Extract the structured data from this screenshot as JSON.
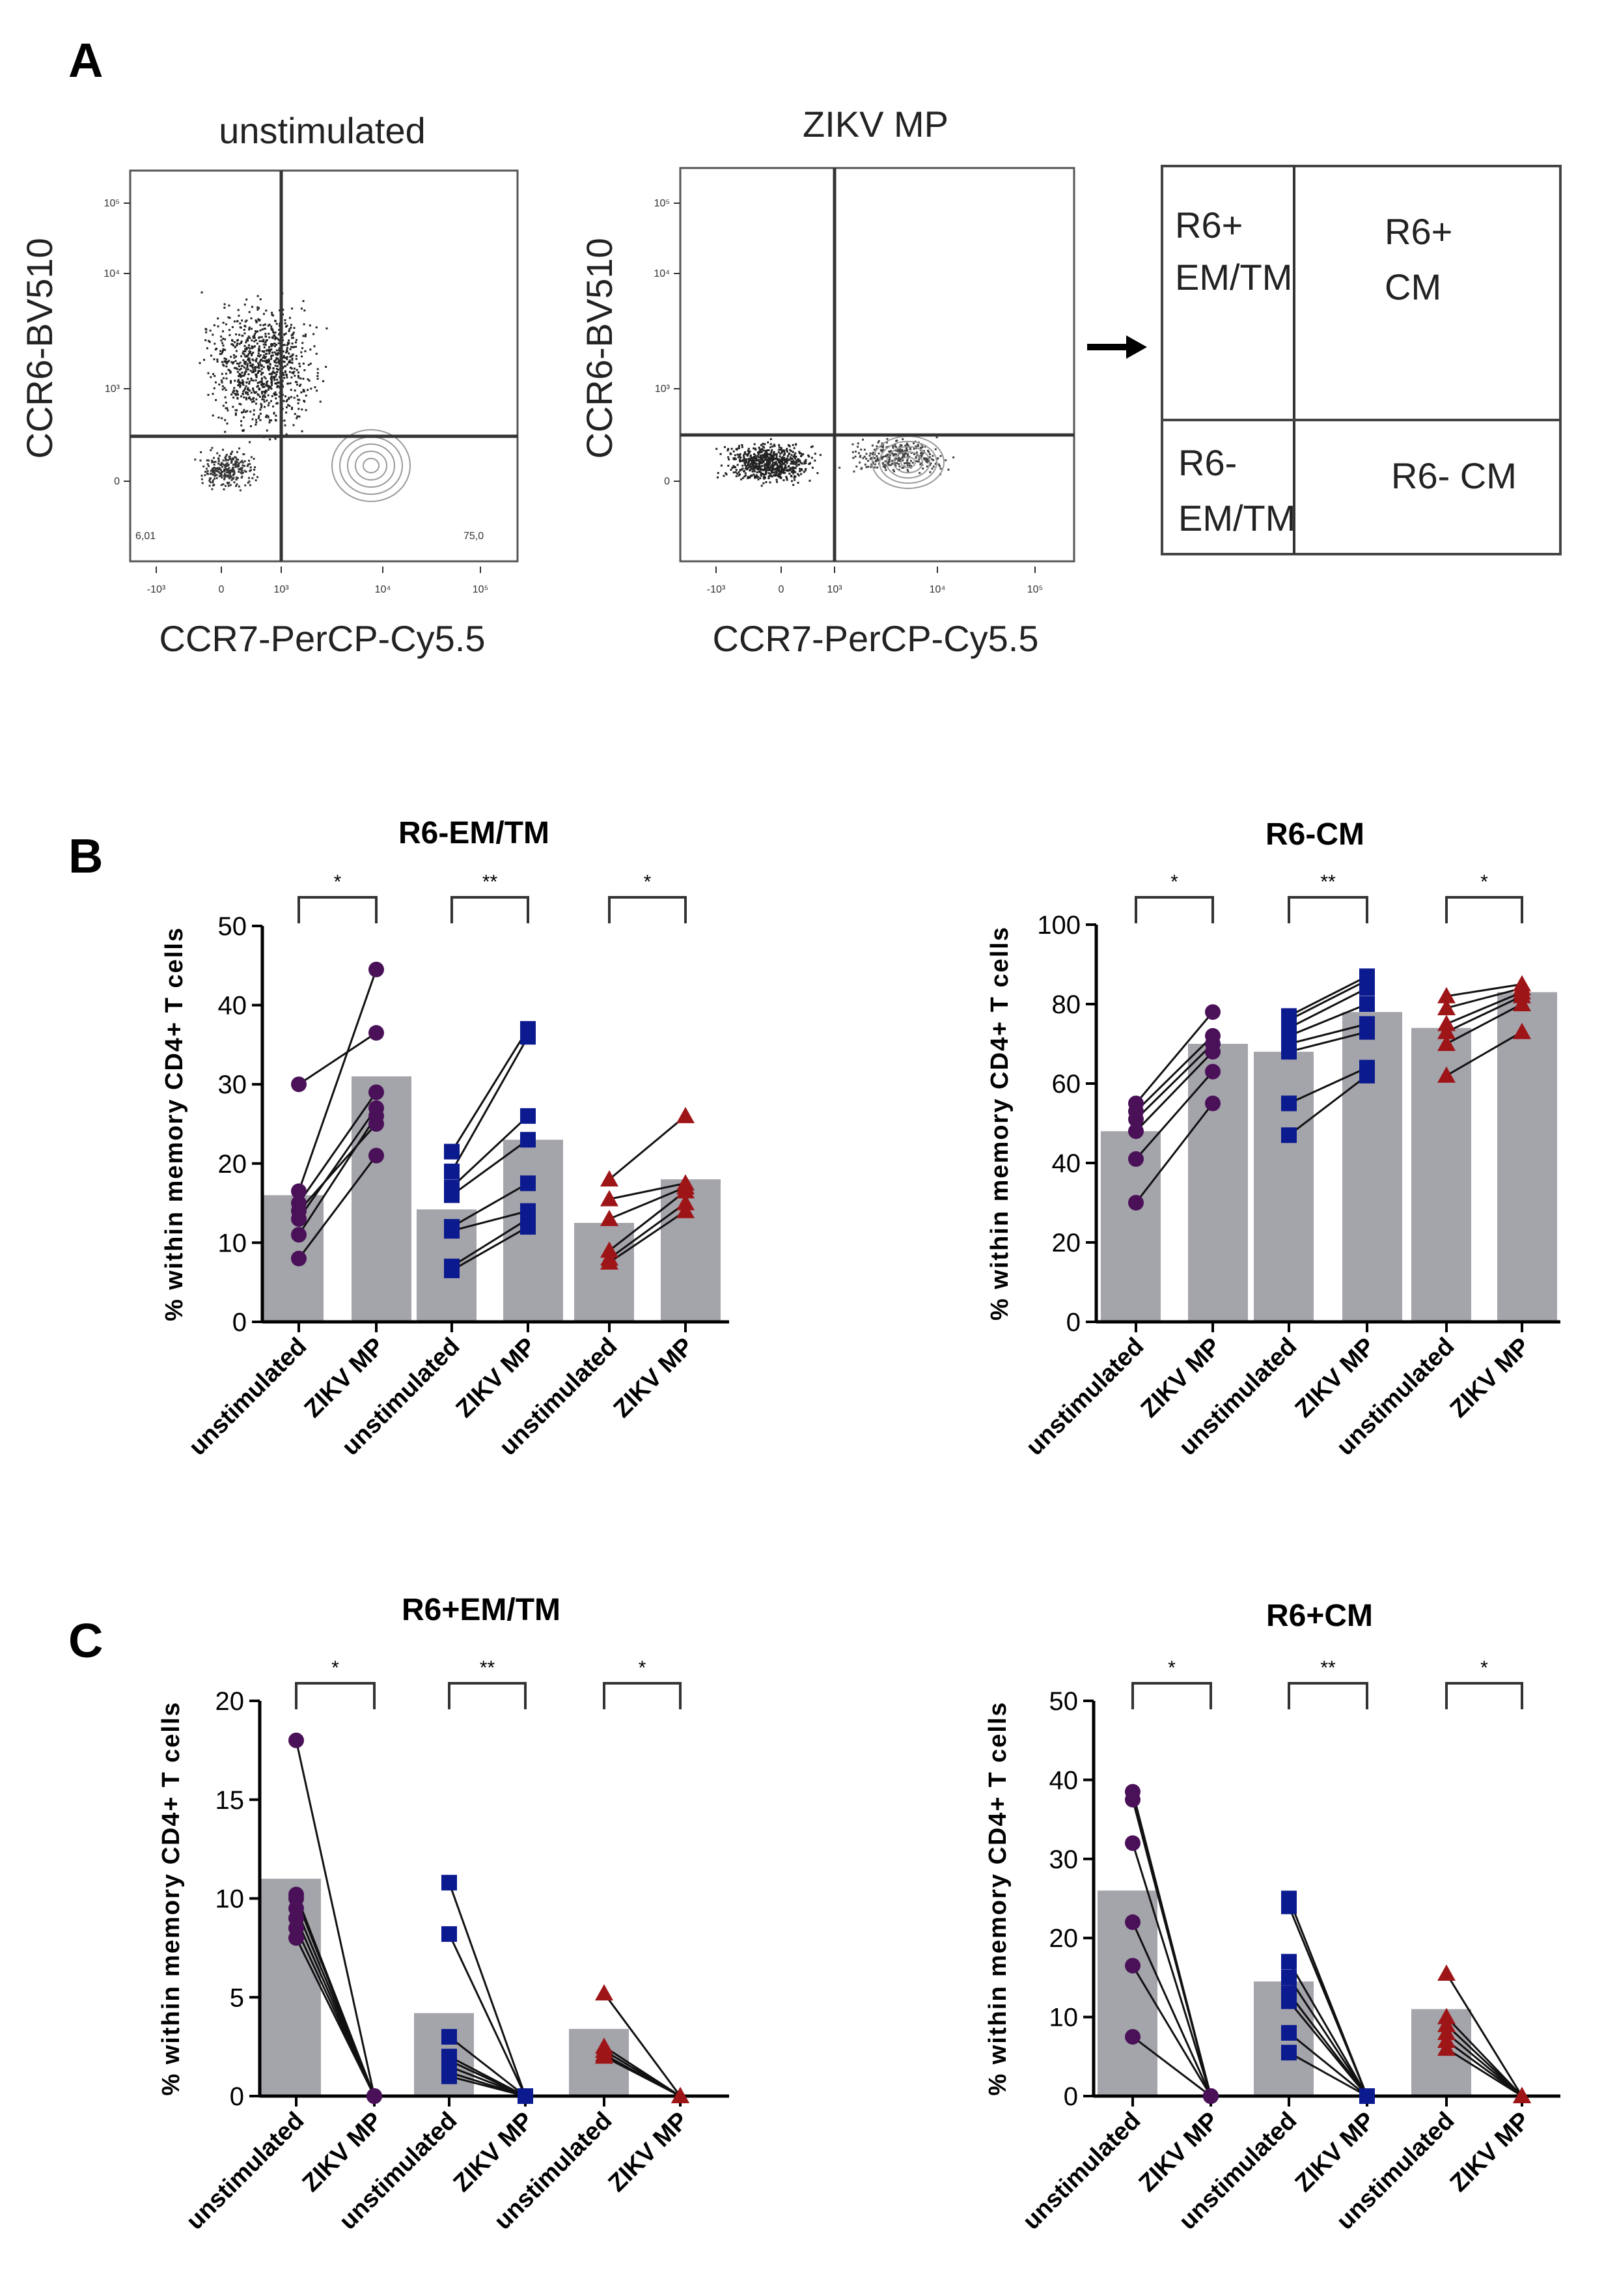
{
  "panels": {
    "a": "A",
    "b": "B",
    "c": "C"
  },
  "flow": [
    {
      "title": "unstimulated",
      "ylabel": "CCR6-BV510",
      "xlabel": "CCR7-PerCP-Cy5.5",
      "q_lower_left": "6,01",
      "q_lower_right": "75,0"
    },
    {
      "title": "ZIKV MP",
      "ylabel": "CCR6-BV510",
      "xlabel": "CCR7-PerCP-Cy5.5"
    }
  ],
  "flow_xticks": [
    "-10³",
    "0",
    "10³",
    "10⁴",
    "10⁵"
  ],
  "flow_yticks": [
    "10⁵",
    "10⁴",
    "10³",
    "0"
  ],
  "quadrants": {
    "top_left": [
      "R6+",
      "EM/TM"
    ],
    "top_right": [
      "R6+",
      "CM"
    ],
    "bottom_left": [
      "R6-",
      "EM/TM"
    ],
    "bottom_right": "R6- CM"
  },
  "colors": {
    "purple": "#4a1158",
    "blue": "#0b1a8f",
    "red": "#9e1518",
    "bar": "#a4a4ab"
  },
  "chart_data": [
    {
      "type": "bar",
      "title": "R6-EM/TM",
      "ylabel": "% within memory CD4+ T cells",
      "ylim": [
        0,
        50
      ],
      "yticks": [
        0,
        10,
        20,
        30,
        40,
        50
      ],
      "categories": [
        "unstimulated",
        "ZIKV MP",
        "unstimulated",
        "ZIKV MP",
        "unstimulated",
        "ZIKV MP"
      ],
      "significance": [
        "*",
        "**",
        "*"
      ],
      "groups": [
        {
          "color": "purple",
          "marker": "circle",
          "bars": [
            16,
            31
          ],
          "unstim": [
            30,
            8,
            16.5,
            15,
            13,
            11,
            14
          ],
          "zikv": [
            36.5,
            21,
            44.5,
            29,
            27,
            26,
            25
          ]
        },
        {
          "color": "blue",
          "marker": "square",
          "bars": [
            14.2,
            23
          ],
          "unstim": [
            21.5,
            19,
            17,
            16,
            12,
            11.5,
            7,
            6.5
          ],
          "zikv": [
            37,
            36,
            26,
            23,
            17.5,
            14,
            13,
            12
          ]
        },
        {
          "color": "red",
          "marker": "triangle",
          "bars": [
            12.5,
            18
          ],
          "unstim": [
            18,
            15.5,
            13,
            9,
            8,
            7.5
          ],
          "zikv": [
            26,
            17.5,
            17,
            16.5,
            15,
            14
          ]
        }
      ]
    },
    {
      "type": "bar",
      "title": "R6-CM",
      "ylabel": "% within memory CD4+ T cells",
      "ylim": [
        0,
        100
      ],
      "yticks": [
        0,
        20,
        40,
        60,
        80,
        100
      ],
      "categories": [
        "unstimulated",
        "ZIKV MP",
        "unstimulated",
        "ZIKV MP",
        "unstimulated",
        "ZIKV MP"
      ],
      "significance": [
        "*",
        "**",
        "*"
      ],
      "groups": [
        {
          "color": "purple",
          "marker": "circle",
          "bars": [
            48,
            70
          ],
          "unstim": [
            55,
            53,
            51,
            48,
            41,
            30
          ],
          "zikv": [
            78,
            72,
            70,
            68,
            63,
            55
          ]
        },
        {
          "color": "blue",
          "marker": "square",
          "bars": [
            68,
            78
          ],
          "unstim": [
            77,
            76,
            74,
            72,
            70,
            68,
            55,
            47
          ],
          "zikv": [
            87,
            86,
            84,
            80,
            75,
            73,
            64,
            62
          ]
        },
        {
          "color": "red",
          "marker": "triangle",
          "bars": [
            74,
            83
          ],
          "unstim": [
            82,
            79,
            75,
            73,
            70,
            62
          ],
          "zikv": [
            85,
            84,
            83,
            82,
            80,
            73
          ]
        }
      ]
    },
    {
      "type": "bar",
      "title": "R6+EM/TM",
      "ylabel": "% within memory CD4+ T cells",
      "ylim": [
        0,
        20
      ],
      "yticks": [
        0,
        5,
        10,
        15,
        20
      ],
      "categories": [
        "unstimulated",
        "ZIKV MP",
        "unstimulated",
        "ZIKV MP",
        "unstimulated",
        "ZIKV MP"
      ],
      "significance": [
        "*",
        "**",
        "*"
      ],
      "groups": [
        {
          "color": "purple",
          "marker": "circle",
          "bars": [
            11,
            0
          ],
          "unstim": [
            18,
            10.2,
            10,
            9.5,
            9,
            8.5,
            8
          ],
          "zikv": [
            0,
            0,
            0,
            0,
            0,
            0,
            0
          ]
        },
        {
          "color": "blue",
          "marker": "square",
          "bars": [
            4.2,
            0
          ],
          "unstim": [
            10.8,
            8.2,
            3,
            2,
            1.8,
            1.5,
            1.2,
            1
          ],
          "zikv": [
            0,
            0,
            0,
            0,
            0,
            0,
            0,
            0
          ]
        },
        {
          "color": "red",
          "marker": "triangle",
          "bars": [
            3.4,
            0
          ],
          "unstim": [
            5.2,
            2.5,
            2.3,
            2.1,
            2
          ],
          "zikv": [
            0,
            0,
            0,
            0,
            0
          ]
        }
      ]
    },
    {
      "type": "bar",
      "title": "R6+CM",
      "ylabel": "% within memory CD4+ T cells",
      "ylim": [
        0,
        50
      ],
      "yticks": [
        0,
        10,
        20,
        30,
        40,
        50
      ],
      "categories": [
        "unstimulated",
        "ZIKV MP",
        "unstimulated",
        "ZIKV MP",
        "unstimulated",
        "ZIKV MP"
      ],
      "significance": [
        "*",
        "**",
        "*"
      ],
      "groups": [
        {
          "color": "purple",
          "marker": "circle",
          "bars": [
            26,
            0
          ],
          "unstim": [
            38.5,
            37.5,
            32,
            22,
            16.5,
            7.5
          ],
          "zikv": [
            0,
            0,
            0,
            0,
            0,
            0
          ]
        },
        {
          "color": "blue",
          "marker": "square",
          "bars": [
            14.5,
            0
          ],
          "unstim": [
            25,
            24,
            17,
            15,
            13,
            12,
            8,
            5.5
          ],
          "zikv": [
            0,
            0,
            0,
            0,
            0,
            0,
            0,
            0
          ]
        },
        {
          "color": "red",
          "marker": "triangle",
          "bars": [
            11,
            0
          ],
          "unstim": [
            15.5,
            10,
            9,
            8,
            7,
            6
          ],
          "zikv": [
            0,
            0,
            0,
            0,
            0,
            0
          ]
        }
      ]
    }
  ]
}
